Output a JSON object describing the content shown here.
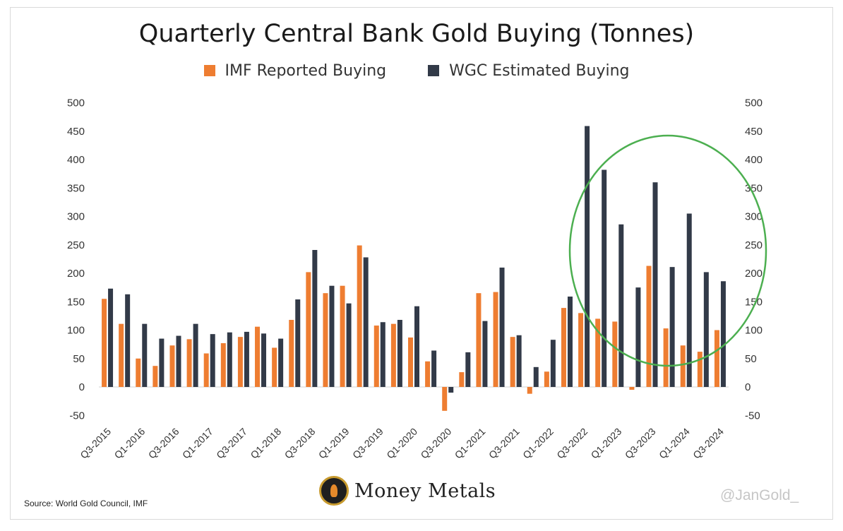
{
  "chart_data": {
    "type": "bar",
    "title": "Quarterly Central Bank Gold Buying (Tonnes)",
    "categories": [
      "Q3-2015",
      "Q4-2015",
      "Q1-2016",
      "Q2-2016",
      "Q3-2016",
      "Q4-2016",
      "Q1-2017",
      "Q2-2017",
      "Q3-2017",
      "Q4-2017",
      "Q1-2018",
      "Q2-2018",
      "Q3-2018",
      "Q4-2018",
      "Q1-2019",
      "Q2-2019",
      "Q3-2019",
      "Q4-2019",
      "Q1-2020",
      "Q2-2020",
      "Q3-2020",
      "Q4-2020",
      "Q1-2021",
      "Q2-2021",
      "Q3-2021",
      "Q4-2021",
      "Q1-2022",
      "Q2-2022",
      "Q3-2022",
      "Q4-2022",
      "Q1-2023",
      "Q2-2023",
      "Q3-2023",
      "Q4-2023",
      "Q1-2024",
      "Q2-2024",
      "Q3-2024"
    ],
    "tick_labels": [
      "Q3-2015",
      "Q1-2016",
      "Q3-2016",
      "Q1-2017",
      "Q3-2017",
      "Q1-2018",
      "Q3-2018",
      "Q1-2019",
      "Q3-2019",
      "Q1-2020",
      "Q3-2020",
      "Q1-2021",
      "Q3-2021",
      "Q1-2022",
      "Q3-2022",
      "Q1-2023",
      "Q3-2023",
      "Q1-2024",
      "Q3-2024"
    ],
    "series": [
      {
        "name": "IMF Reported Buying",
        "color": "#ee7d31",
        "values": [
          155,
          111,
          50,
          37,
          73,
          84,
          59,
          77,
          88,
          106,
          69,
          118,
          202,
          165,
          178,
          249,
          108,
          111,
          87,
          45,
          -42,
          26,
          165,
          167,
          88,
          -12,
          27,
          139,
          130,
          120,
          115,
          -5,
          213,
          103,
          73,
          62,
          100
        ]
      },
      {
        "name": "WGC Estimated Buying",
        "color": "#323a48",
        "values": [
          173,
          163,
          111,
          85,
          90,
          111,
          93,
          96,
          97,
          94,
          85,
          154,
          241,
          178,
          147,
          228,
          114,
          118,
          142,
          64,
          -10,
          61,
          116,
          210,
          91,
          35,
          83,
          159,
          459,
          382,
          286,
          175,
          360,
          211,
          305,
          202,
          186
        ]
      }
    ],
    "ylim": [
      -50,
      500
    ],
    "yticks": [
      "500",
      "450",
      "400",
      "350",
      "300",
      "250",
      "200",
      "150",
      "100",
      "50",
      "0",
      "-50"
    ],
    "grid": false,
    "legend_position": "top",
    "annotation": "green ellipse highlighting Q3-2022 to Q3-2024"
  },
  "footer": {
    "source": "Source: World Gold Council, IMF",
    "brand": "Money Metals",
    "handle": "@JanGold_"
  }
}
